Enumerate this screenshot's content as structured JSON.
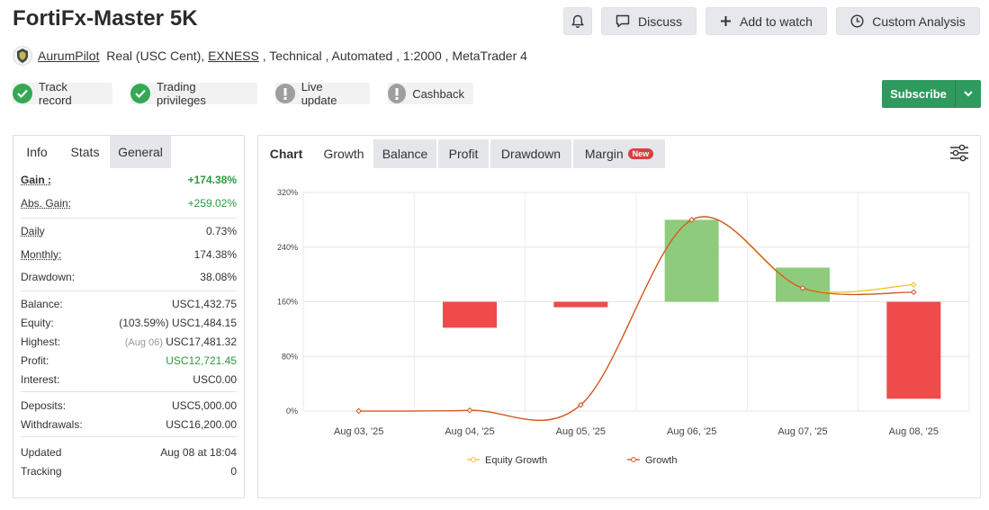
{
  "header": {
    "title": "FortiFx-Master 5K",
    "buttons": {
      "discuss": "Discuss",
      "watch": "Add to watch",
      "custom": "Custom Analysis"
    }
  },
  "meta": {
    "author": "AurumPilot",
    "account_type": "Real (USC Cent),",
    "broker": "EXNESS",
    "rest": " , Technical , Automated , 1:2000 , MetaTrader 4"
  },
  "badges": {
    "track_record": "Track record",
    "trading_privileges": "Trading privileges",
    "live_update": "Live update",
    "cashback": "Cashback"
  },
  "colors": {
    "ok": "#35a853",
    "warn": "#9e9e9e",
    "subscribe": "#2e9a5e",
    "up_bar": "#8ecb7c",
    "down_bar": "#ef4b4b",
    "equity_line": "#f0c419",
    "growth_line": "#d0542a"
  },
  "subscribe_label": "Subscribe",
  "stats": {
    "tabs": [
      "Info",
      "Stats",
      "General"
    ],
    "gain": {
      "label": "Gain :",
      "value": "+174.38%"
    },
    "abs_gain": {
      "label": "Abs. Gain:",
      "value": "+259.02%"
    },
    "daily": {
      "label": "Daily",
      "value": "0.73%"
    },
    "monthly": {
      "label": "Monthly:",
      "value": "174.38%"
    },
    "drawdown": {
      "label": "Drawdown:",
      "value": "38.08%"
    },
    "balance": {
      "label": "Balance:",
      "value": "USC1,432.75"
    },
    "equity": {
      "label": "Equity:",
      "pct": "(103.59%)",
      "value": "USC1,484.15"
    },
    "highest": {
      "label": "Highest:",
      "date": "(Aug 06)",
      "value": "USC17,481.32"
    },
    "profit": {
      "label": "Profit:",
      "value": "USC12,721.45"
    },
    "interest": {
      "label": "Interest:",
      "value": "USC0.00"
    },
    "deposits": {
      "label": "Deposits:",
      "value": "USC5,000.00"
    },
    "withdrawals": {
      "label": "Withdrawals:",
      "value": "USC16,200.00"
    },
    "updated": {
      "label": "Updated",
      "value": "Aug 08 at 18:04"
    },
    "tracking": {
      "label": "Tracking",
      "value": "0"
    }
  },
  "chart_tabs": {
    "chart": "Chart",
    "growth": "Growth",
    "balance": "Balance",
    "profit": "Profit",
    "drawdown": "Drawdown",
    "margin": "Margin",
    "new_badge": "New"
  },
  "chart_data": {
    "type": "bar",
    "categories": [
      "Aug 03, '25",
      "Aug 04, '25",
      "Aug 05, '25",
      "Aug 06, '25",
      "Aug 07, '25",
      "Aug 08, '25"
    ],
    "ylim": [
      0,
      320
    ],
    "yticks": [
      0,
      80,
      160,
      240,
      320
    ],
    "ytick_labels": [
      "0%",
      "80%",
      "160%",
      "240%",
      "320%"
    ],
    "grid": true,
    "legend_position": "bottom",
    "bars": [
      null,
      {
        "from": 160,
        "to": 122
      },
      {
        "from": 160,
        "to": 152
      },
      {
        "from": 160,
        "to": 280
      },
      {
        "from": 160,
        "to": 210
      },
      {
        "from": 160,
        "to": 18
      }
    ],
    "series": [
      {
        "name": "Equity Growth",
        "values": [
          0,
          1,
          9,
          280,
          180,
          185
        ]
      },
      {
        "name": "Growth",
        "values": [
          0,
          1,
          9,
          280,
          180,
          174
        ]
      }
    ]
  }
}
